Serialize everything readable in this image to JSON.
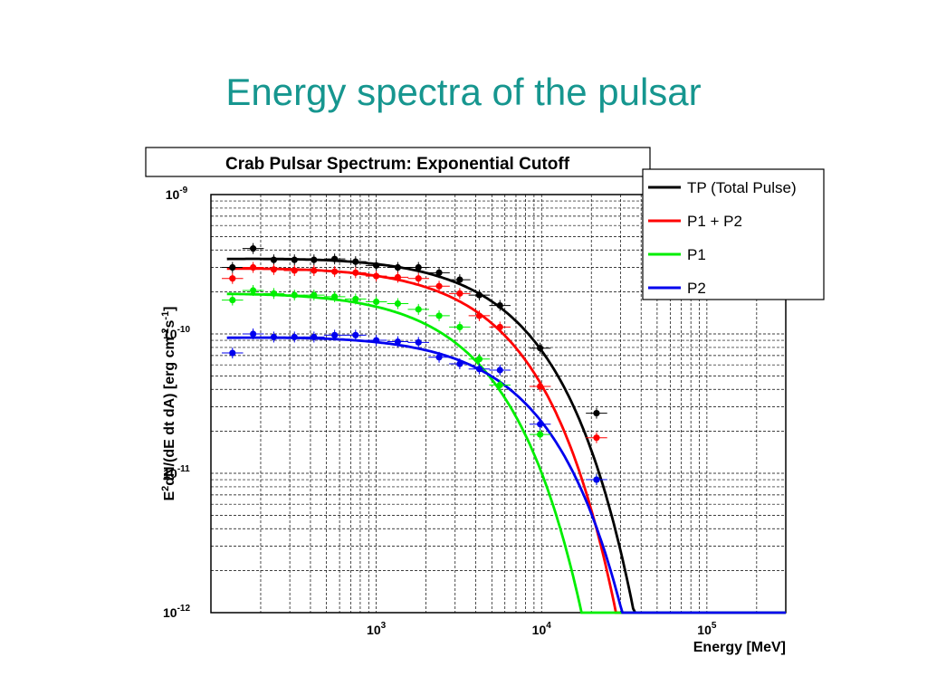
{
  "slide": {
    "title": "Energy spectra of the pulsar"
  },
  "chart_data": {
    "type": "scatter",
    "title": "Crab Pulsar Spectrum: Exponential Cutoff",
    "xlabel": "Energy [MeV]",
    "ylabel": "E^2dN/(dE dt dA) [erg cm^-2 s^-1]",
    "xscale": "log",
    "yscale": "log",
    "xlim": [
      100,
      300000
    ],
    "ylim": [
      1e-12,
      1e-09
    ],
    "grid": true,
    "legend_position": "top-right",
    "x_ticks": [
      {
        "base": "10",
        "exp": "3",
        "value": 1000
      },
      {
        "base": "10",
        "exp": "4",
        "value": 10000
      },
      {
        "base": "10",
        "exp": "5",
        "value": 100000
      }
    ],
    "y_ticks": [
      {
        "base": "10",
        "exp": "-9",
        "value": 1e-09
      },
      {
        "base": "10",
        "exp": "-10",
        "value": 1e-10
      },
      {
        "base": "10",
        "exp": "-11",
        "value": 1e-11
      },
      {
        "base": "10",
        "exp": "-12",
        "value": 1e-12
      }
    ],
    "series": [
      {
        "name": "TP (Total Pulse)",
        "color": "#000000",
        "fit": {
          "norm": 3.5e-10,
          "index": 1.97,
          "cutoff": 6000
        },
        "points": [
          {
            "x": 135,
            "y": 3e-10
          },
          {
            "x": 180,
            "y": 4.1e-10
          },
          {
            "x": 240,
            "y": 3.4e-10
          },
          {
            "x": 320,
            "y": 3.4e-10
          },
          {
            "x": 420,
            "y": 3.4e-10
          },
          {
            "x": 560,
            "y": 3.45e-10
          },
          {
            "x": 750,
            "y": 3.3e-10
          },
          {
            "x": 1000,
            "y": 3.1e-10
          },
          {
            "x": 1350,
            "y": 3e-10
          },
          {
            "x": 1800,
            "y": 3e-10
          },
          {
            "x": 2400,
            "y": 2.75e-10
          },
          {
            "x": 3200,
            "y": 2.45e-10
          },
          {
            "x": 4200,
            "y": 1.9e-10
          },
          {
            "x": 5600,
            "y": 1.6e-10
          },
          {
            "x": 9800,
            "y": 7.9e-11
          },
          {
            "x": 21500,
            "y": 2.7e-11
          }
        ]
      },
      {
        "name": "P1 + P2",
        "color": "#ff0000",
        "fit": {
          "norm": 3e-10,
          "index": 1.97,
          "cutoff": 4800
        },
        "points": [
          {
            "x": 135,
            "y": 2.5e-10
          },
          {
            "x": 180,
            "y": 3e-10
          },
          {
            "x": 240,
            "y": 2.9e-10
          },
          {
            "x": 320,
            "y": 2.85e-10
          },
          {
            "x": 420,
            "y": 2.85e-10
          },
          {
            "x": 560,
            "y": 2.8e-10
          },
          {
            "x": 750,
            "y": 2.75e-10
          },
          {
            "x": 1000,
            "y": 2.6e-10
          },
          {
            "x": 1350,
            "y": 2.55e-10
          },
          {
            "x": 1800,
            "y": 2.5e-10
          },
          {
            "x": 2400,
            "y": 2.2e-10
          },
          {
            "x": 3200,
            "y": 1.95e-10
          },
          {
            "x": 4200,
            "y": 1.35e-10
          },
          {
            "x": 5600,
            "y": 1.12e-10
          },
          {
            "x": 9800,
            "y": 4.2e-11
          },
          {
            "x": 21500,
            "y": 1.8e-11
          }
        ]
      },
      {
        "name": "P1",
        "color": "#00ee00",
        "fit": {
          "norm": 2e-10,
          "index": 1.97,
          "cutoff": 3200
        },
        "points": [
          {
            "x": 135,
            "y": 1.75e-10
          },
          {
            "x": 180,
            "y": 2.05e-10
          },
          {
            "x": 240,
            "y": 1.95e-10
          },
          {
            "x": 320,
            "y": 1.9e-10
          },
          {
            "x": 420,
            "y": 1.9e-10
          },
          {
            "x": 560,
            "y": 1.85e-10
          },
          {
            "x": 750,
            "y": 1.78e-10
          },
          {
            "x": 1000,
            "y": 1.7e-10
          },
          {
            "x": 1350,
            "y": 1.65e-10
          },
          {
            "x": 1800,
            "y": 1.5e-10
          },
          {
            "x": 2400,
            "y": 1.35e-10
          },
          {
            "x": 3200,
            "y": 1.12e-10
          },
          {
            "x": 4200,
            "y": 6.6e-11
          },
          {
            "x": 5600,
            "y": 4.3e-11
          },
          {
            "x": 9800,
            "y": 1.9e-11
          },
          {
            "x": 21500,
            "y": 9e-12
          }
        ]
      },
      {
        "name": "P2",
        "color": "#0000ee",
        "fit": {
          "norm": 9.5e-11,
          "index": 1.97,
          "cutoff": 6500
        },
        "points": [
          {
            "x": 135,
            "y": 7.3e-11
          },
          {
            "x": 180,
            "y": 1e-10
          },
          {
            "x": 240,
            "y": 9.5e-11
          },
          {
            "x": 320,
            "y": 9.5e-11
          },
          {
            "x": 420,
            "y": 9.5e-11
          },
          {
            "x": 560,
            "y": 9.8e-11
          },
          {
            "x": 750,
            "y": 9.8e-11
          },
          {
            "x": 1000,
            "y": 9e-11
          },
          {
            "x": 1350,
            "y": 8.8e-11
          },
          {
            "x": 1800,
            "y": 8.7e-11
          },
          {
            "x": 2400,
            "y": 6.8e-11
          },
          {
            "x": 3200,
            "y": 6.1e-11
          },
          {
            "x": 4200,
            "y": 5.6e-11
          },
          {
            "x": 5600,
            "y": 5.5e-11
          },
          {
            "x": 9800,
            "y": 2.25e-11
          },
          {
            "x": 21500,
            "y": 9e-12
          }
        ]
      }
    ]
  }
}
